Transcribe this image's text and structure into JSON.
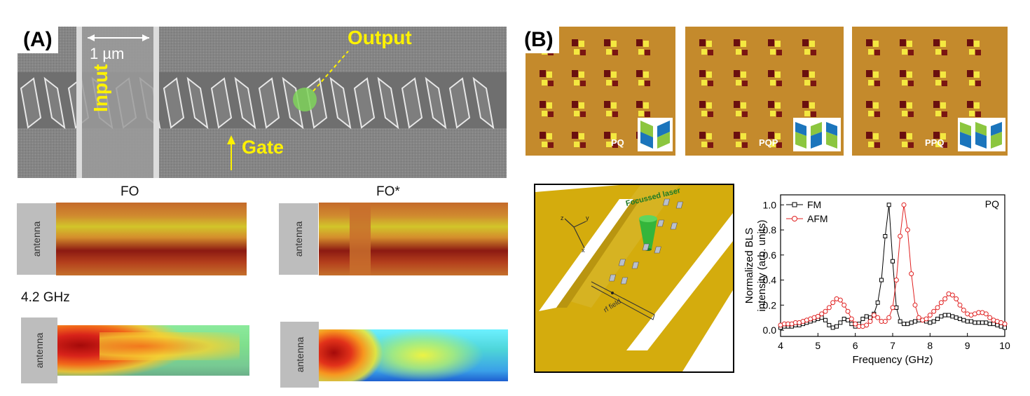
{
  "panel_a": {
    "label": "(A)",
    "scale_bar": "1 µm",
    "output_label": "Output",
    "input_label": "Input",
    "gate_label": "Gate",
    "map_titles": [
      "FO",
      "FO*"
    ],
    "antenna_label": "antenna",
    "frequency_label": "4.2 GHz"
  },
  "panel_b": {
    "label": "(B)",
    "mfm_labels": [
      "PQ",
      "PQP",
      "PPQ"
    ],
    "schematic": {
      "laser_label": "Focussed laser",
      "rf_label": "rf field",
      "axes": [
        "x",
        "y",
        "z"
      ]
    }
  },
  "colors": {
    "annotation_yellow": "#fff200",
    "fm_series": "#000000",
    "afm_series": "#e02020",
    "gold": "#d4ac0d"
  },
  "chart_data": {
    "type": "line",
    "corner_label": "PQ",
    "xlabel": "Frequency (GHz)",
    "ylabel": "Normalized BLS intensity (arb. units)",
    "xlim": [
      4,
      10
    ],
    "ylim": [
      -0.05,
      1.08
    ],
    "x_ticks": [
      4,
      5,
      6,
      7,
      8,
      9,
      10
    ],
    "y_ticks": [
      0.0,
      0.2,
      0.4,
      0.6,
      0.8,
      1.0
    ],
    "legend_position": "top-left",
    "series": [
      {
        "name": "FM",
        "marker": "open-square",
        "x": [
          4.0,
          4.1,
          4.2,
          4.3,
          4.4,
          4.5,
          4.6,
          4.7,
          4.8,
          4.9,
          5.0,
          5.1,
          5.2,
          5.3,
          5.4,
          5.5,
          5.6,
          5.7,
          5.8,
          5.9,
          6.0,
          6.1,
          6.2,
          6.3,
          6.4,
          6.5,
          6.6,
          6.7,
          6.8,
          6.9,
          7.0,
          7.1,
          7.2,
          7.3,
          7.4,
          7.5,
          7.6,
          7.7,
          7.8,
          7.9,
          8.0,
          8.1,
          8.2,
          8.3,
          8.4,
          8.5,
          8.6,
          8.7,
          8.8,
          8.9,
          9.0,
          9.1,
          9.2,
          9.3,
          9.4,
          9.5,
          9.6,
          9.7,
          9.8,
          9.9,
          10.0
        ],
        "y": [
          0.02,
          0.03,
          0.03,
          0.03,
          0.04,
          0.04,
          0.05,
          0.06,
          0.07,
          0.08,
          0.09,
          0.1,
          0.08,
          0.04,
          0.02,
          0.03,
          0.06,
          0.09,
          0.08,
          0.05,
          0.03,
          0.05,
          0.09,
          0.11,
          0.1,
          0.13,
          0.22,
          0.4,
          0.75,
          1.0,
          0.55,
          0.18,
          0.07,
          0.05,
          0.05,
          0.06,
          0.07,
          0.08,
          0.08,
          0.07,
          0.06,
          0.07,
          0.09,
          0.11,
          0.12,
          0.12,
          0.11,
          0.1,
          0.09,
          0.08,
          0.07,
          0.07,
          0.06,
          0.06,
          0.06,
          0.06,
          0.05,
          0.05,
          0.04,
          0.03,
          0.02
        ]
      },
      {
        "name": "AFM",
        "marker": "open-circle",
        "x": [
          4.0,
          4.1,
          4.2,
          4.3,
          4.4,
          4.5,
          4.6,
          4.7,
          4.8,
          4.9,
          5.0,
          5.1,
          5.2,
          5.3,
          5.4,
          5.5,
          5.6,
          5.7,
          5.8,
          5.9,
          6.0,
          6.1,
          6.2,
          6.3,
          6.4,
          6.5,
          6.6,
          6.7,
          6.8,
          6.9,
          7.0,
          7.1,
          7.2,
          7.3,
          7.4,
          7.5,
          7.6,
          7.7,
          7.8,
          7.9,
          8.0,
          8.1,
          8.2,
          8.3,
          8.4,
          8.5,
          8.6,
          8.7,
          8.8,
          8.9,
          9.0,
          9.1,
          9.2,
          9.3,
          9.4,
          9.5,
          9.6,
          9.7,
          9.8,
          9.9,
          10.0
        ],
        "y": [
          0.04,
          0.05,
          0.05,
          0.05,
          0.06,
          0.06,
          0.07,
          0.08,
          0.09,
          0.1,
          0.11,
          0.13,
          0.15,
          0.18,
          0.22,
          0.25,
          0.24,
          0.2,
          0.15,
          0.09,
          0.05,
          0.03,
          0.03,
          0.04,
          0.07,
          0.12,
          0.1,
          0.07,
          0.07,
          0.1,
          0.18,
          0.4,
          0.75,
          1.0,
          0.8,
          0.45,
          0.2,
          0.1,
          0.08,
          0.09,
          0.12,
          0.15,
          0.18,
          0.22,
          0.25,
          0.29,
          0.28,
          0.25,
          0.2,
          0.16,
          0.13,
          0.12,
          0.13,
          0.14,
          0.14,
          0.13,
          0.1,
          0.08,
          0.07,
          0.06,
          0.05
        ]
      }
    ]
  }
}
